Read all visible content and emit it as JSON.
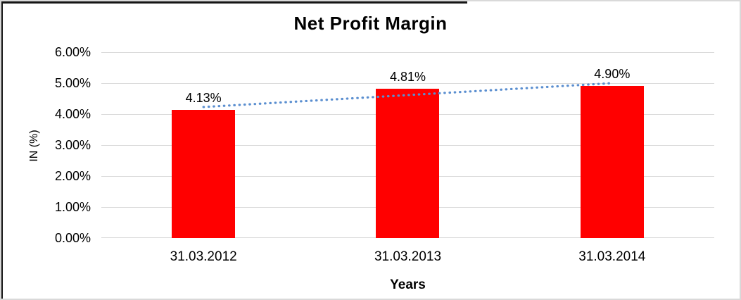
{
  "chart_data": {
    "type": "bar",
    "title": "Net Profit Margin",
    "xlabel": "Years",
    "ylabel": "IN (%)",
    "categories": [
      "31.03.2012",
      "31.03.2013",
      "31.03.2014"
    ],
    "values": [
      4.13,
      4.81,
      4.9
    ],
    "data_labels": [
      "4.13%",
      "4.81%",
      "4.90%"
    ],
    "y_tick_labels": [
      "6.00%",
      "5.00%",
      "4.00%",
      "3.00%",
      "2.00%",
      "1.00%",
      "0.00%"
    ],
    "ylim": [
      0,
      6
    ],
    "y_tick_step": 1,
    "grid": true,
    "legend": "none",
    "bar_color": "#ff0000",
    "gridline_color": "#d9d9d9",
    "trendline": {
      "type": "linear",
      "style": "dotted",
      "color": "#5b8fd0"
    }
  }
}
